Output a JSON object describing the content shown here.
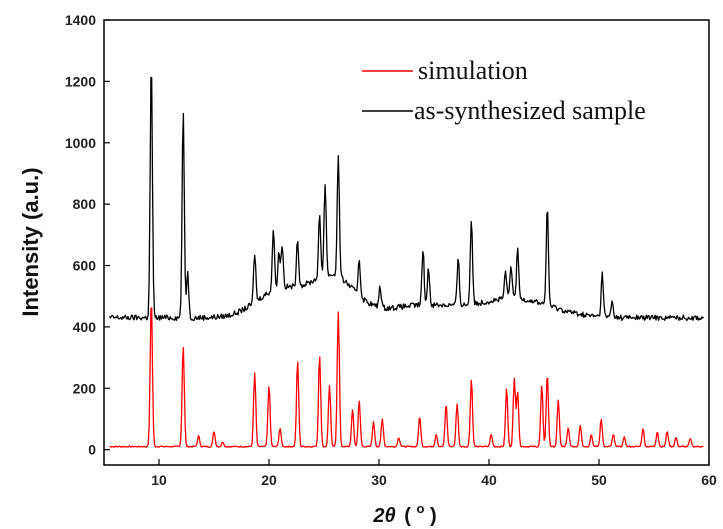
{
  "chart_data": {
    "type": "line",
    "xlabel_main": "2θ",
    "xlabel_unit_open": "(",
    "xlabel_unit_sup": "o",
    "xlabel_unit_close": ")",
    "ylabel": "Intensity (a.u.)",
    "xlim": [
      5,
      60
    ],
    "ylim": [
      -50,
      1400
    ],
    "x_ticks": [
      10,
      20,
      30,
      40,
      50,
      60
    ],
    "y_ticks": [
      0,
      200,
      400,
      600,
      800,
      1000,
      1200,
      1400
    ],
    "grid": false,
    "legend_position": "top-right",
    "series": [
      {
        "name": "simulation",
        "color": "#ff0000",
        "baseline": 10,
        "peaks": [
          [
            9.3,
            490
          ],
          [
            12.2,
            330
          ],
          [
            13.6,
            35
          ],
          [
            15.0,
            50
          ],
          [
            15.8,
            15
          ],
          [
            18.7,
            240
          ],
          [
            20.0,
            200
          ],
          [
            21.0,
            60
          ],
          [
            22.6,
            280
          ],
          [
            24.6,
            300
          ],
          [
            25.5,
            200
          ],
          [
            26.3,
            440
          ],
          [
            27.6,
            120
          ],
          [
            28.2,
            150
          ],
          [
            29.5,
            80
          ],
          [
            30.3,
            90
          ],
          [
            31.8,
            30
          ],
          [
            33.7,
            100
          ],
          [
            35.2,
            40
          ],
          [
            36.1,
            140
          ],
          [
            37.1,
            140
          ],
          [
            38.4,
            220
          ],
          [
            40.2,
            40
          ],
          [
            41.6,
            190
          ],
          [
            42.3,
            220
          ],
          [
            42.6,
            180
          ],
          [
            44.8,
            200
          ],
          [
            45.3,
            240
          ],
          [
            46.3,
            150
          ],
          [
            47.2,
            60
          ],
          [
            48.3,
            70
          ],
          [
            49.3,
            40
          ],
          [
            50.2,
            90
          ],
          [
            51.3,
            40
          ],
          [
            52.3,
            30
          ],
          [
            54.0,
            60
          ],
          [
            55.3,
            50
          ],
          [
            56.2,
            50
          ],
          [
            57.0,
            30
          ],
          [
            58.3,
            25
          ]
        ],
        "humps": []
      },
      {
        "name": "as-synthesized sample",
        "color": "#000000",
        "baseline": 430,
        "peaks": [
          [
            9.3,
            850
          ],
          [
            12.2,
            670
          ],
          [
            12.6,
            150
          ],
          [
            18.7,
            160
          ],
          [
            20.4,
            200
          ],
          [
            20.9,
            120
          ],
          [
            21.2,
            140
          ],
          [
            22.6,
            150
          ],
          [
            24.6,
            200
          ],
          [
            25.1,
            300
          ],
          [
            26.3,
            390
          ],
          [
            28.2,
            120
          ],
          [
            30.1,
            70
          ],
          [
            34.0,
            180
          ],
          [
            34.5,
            120
          ],
          [
            37.2,
            150
          ],
          [
            38.4,
            280
          ],
          [
            41.5,
            90
          ],
          [
            42.0,
            110
          ],
          [
            42.6,
            160
          ],
          [
            45.3,
            320
          ],
          [
            50.3,
            140
          ],
          [
            51.2,
            50
          ]
        ],
        "humps": [
          [
            21.0,
            3.0,
            90
          ],
          [
            25.8,
            2.8,
            130
          ],
          [
            34.0,
            5.0,
            40
          ],
          [
            42.5,
            4.5,
            60
          ]
        ]
      }
    ]
  }
}
